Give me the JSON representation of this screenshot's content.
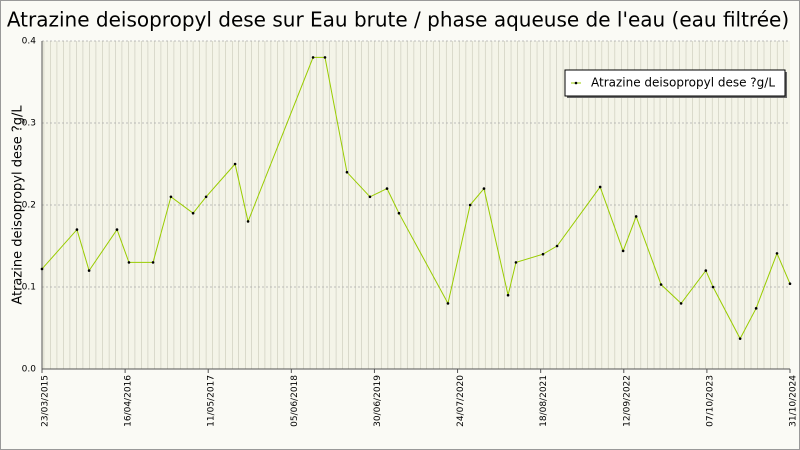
{
  "chart_data": {
    "type": "line",
    "title": "Atrazine deisopropyl dese sur Eau brute / phase aqueuse de l'eau (eau filtrée)",
    "y_label": "Atrazine deisopropyl dese ?g/L",
    "x": [
      "23/03/2015",
      "03/09/2015",
      "30/10/2015",
      "09/03/2016",
      "04/05/2016",
      "25/08/2016",
      "17/11/2016",
      "01/03/2017",
      "01/05/2017",
      "14/09/2017",
      "14/11/2017",
      "15/09/2018",
      "10/11/2018",
      "21/02/2019",
      "09/06/2019",
      "28/08/2019",
      "23/10/2019",
      "09/06/2020",
      "21/09/2020",
      "25/11/2020",
      "18/03/2021",
      "24/04/2021",
      "29/08/2021",
      "03/11/2021",
      "24/05/2022",
      "09/09/2022",
      "09/11/2022",
      "06/03/2023",
      "08/06/2023",
      "02/10/2023",
      "05/11/2023",
      "11/03/2024",
      "25/05/2024",
      "31/08/2024",
      "31/10/2024"
    ],
    "series": [
      {
        "name": "Atrazine deisopropyl dese ?g/L",
        "color": "#99cc00",
        "values": [
          0.122,
          0.17,
          0.12,
          0.17,
          0.13,
          0.13,
          0.21,
          0.19,
          0.21,
          0.25,
          0.18,
          0.38,
          0.38,
          0.24,
          0.21,
          0.22,
          0.19,
          0.08,
          0.2,
          0.22,
          0.09,
          0.13,
          0.14,
          0.15,
          0.222,
          0.144,
          0.186,
          0.103,
          0.08,
          0.12,
          0.1,
          0.037,
          0.074,
          0.141,
          0.104
        ]
      }
    ],
    "xlim": [
      "23/03/2015",
      "31/10/2024"
    ],
    "xticks": [
      "23/03/2015",
      "16/04/2016",
      "11/05/2017",
      "05/06/2018",
      "30/06/2019",
      "24/07/2020",
      "18/08/2021",
      "12/09/2022",
      "07/10/2023",
      "31/10/2024"
    ],
    "ylim": [
      0,
      0.4
    ],
    "yticks": [
      {
        "value": 0,
        "label": "0.0"
      },
      0.1,
      0.2,
      0.3,
      0.4
    ],
    "grid": true,
    "legend_position": "top-right"
  }
}
